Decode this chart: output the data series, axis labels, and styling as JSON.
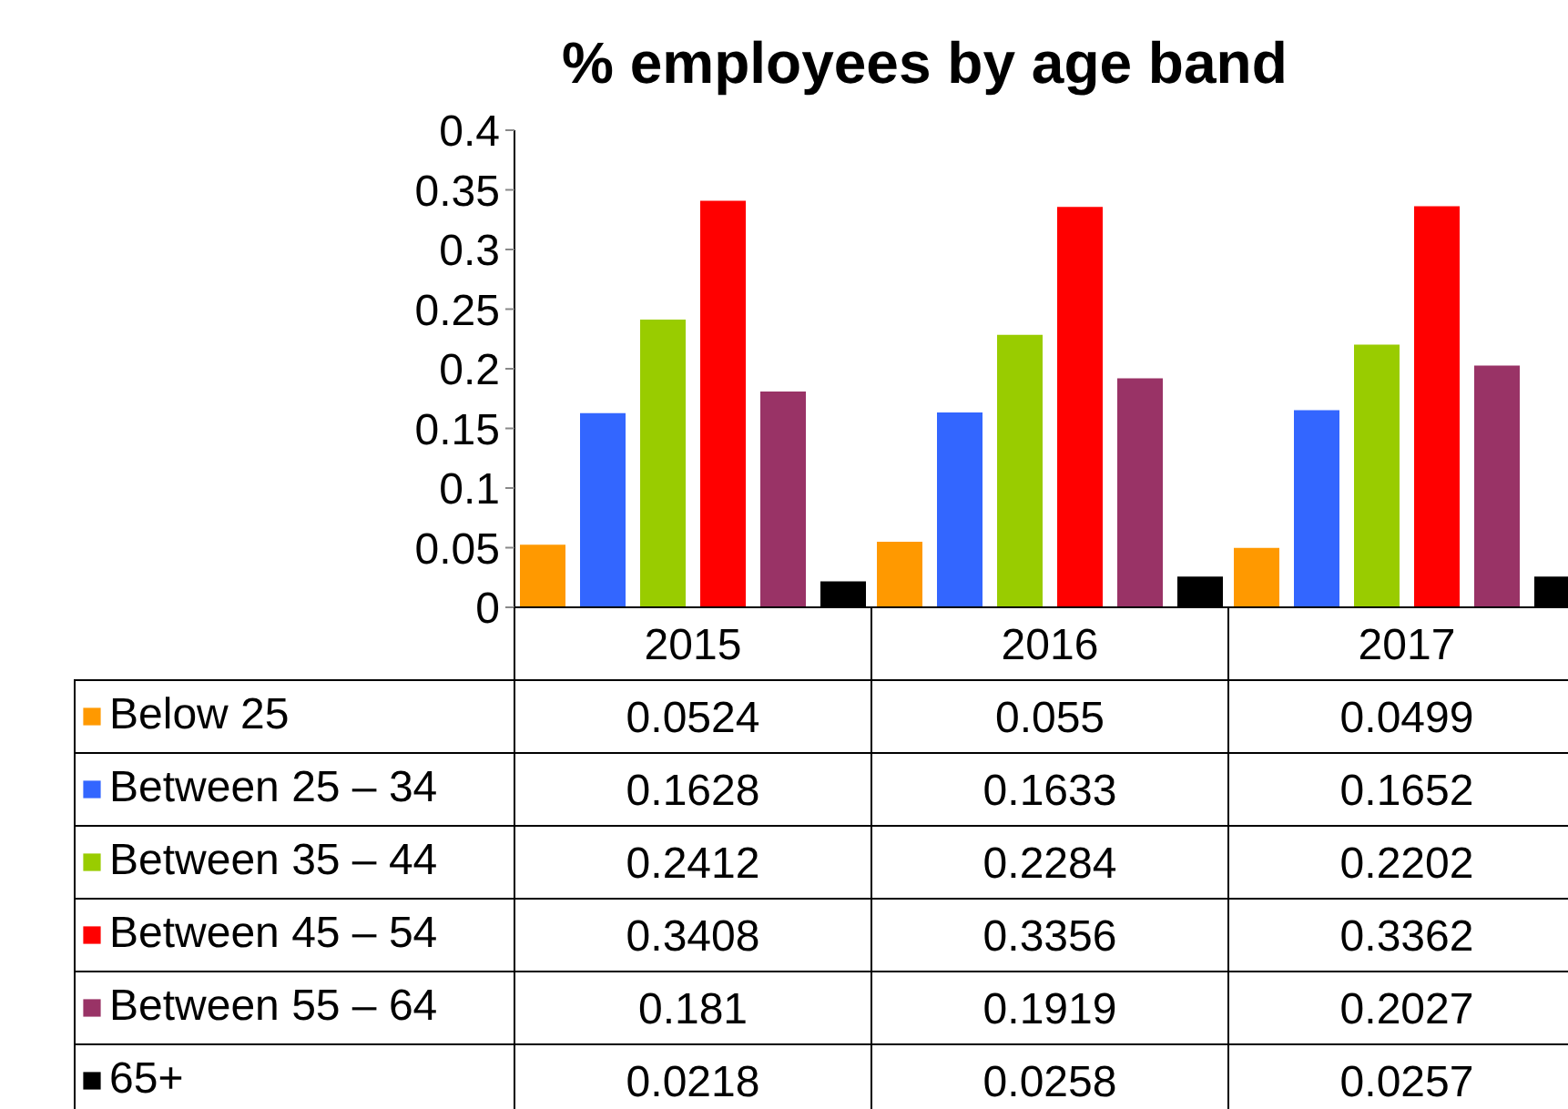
{
  "chart_data": {
    "type": "bar",
    "title": "% employees by age band",
    "categories": [
      "2015",
      "2016",
      "2017"
    ],
    "series": [
      {
        "name": "Below 25",
        "color": "#ff9900",
        "values": [
          0.0524,
          0.055,
          0.0499
        ]
      },
      {
        "name": "Between 25 – 34",
        "color": "#3366ff",
        "values": [
          0.1628,
          0.1633,
          0.1652
        ]
      },
      {
        "name": "Between 35 – 44",
        "color": "#99cc00",
        "values": [
          0.2412,
          0.2284,
          0.2202
        ]
      },
      {
        "name": "Between 45 – 54",
        "color": "#ff0000",
        "values": [
          0.3408,
          0.3356,
          0.3362
        ]
      },
      {
        "name": "Between 55 – 64",
        "color": "#993366",
        "values": [
          0.181,
          0.1919,
          0.2027
        ]
      },
      {
        "name": "65+",
        "color": "#000000",
        "values": [
          0.0218,
          0.0258,
          0.0257
        ]
      }
    ],
    "ylim": [
      0,
      0.4
    ],
    "yticks": [
      0,
      0.05,
      0.1,
      0.15,
      0.2,
      0.25,
      0.3,
      0.35,
      0.4
    ],
    "data_labels": true,
    "legend": "bottom",
    "grid": false
  }
}
